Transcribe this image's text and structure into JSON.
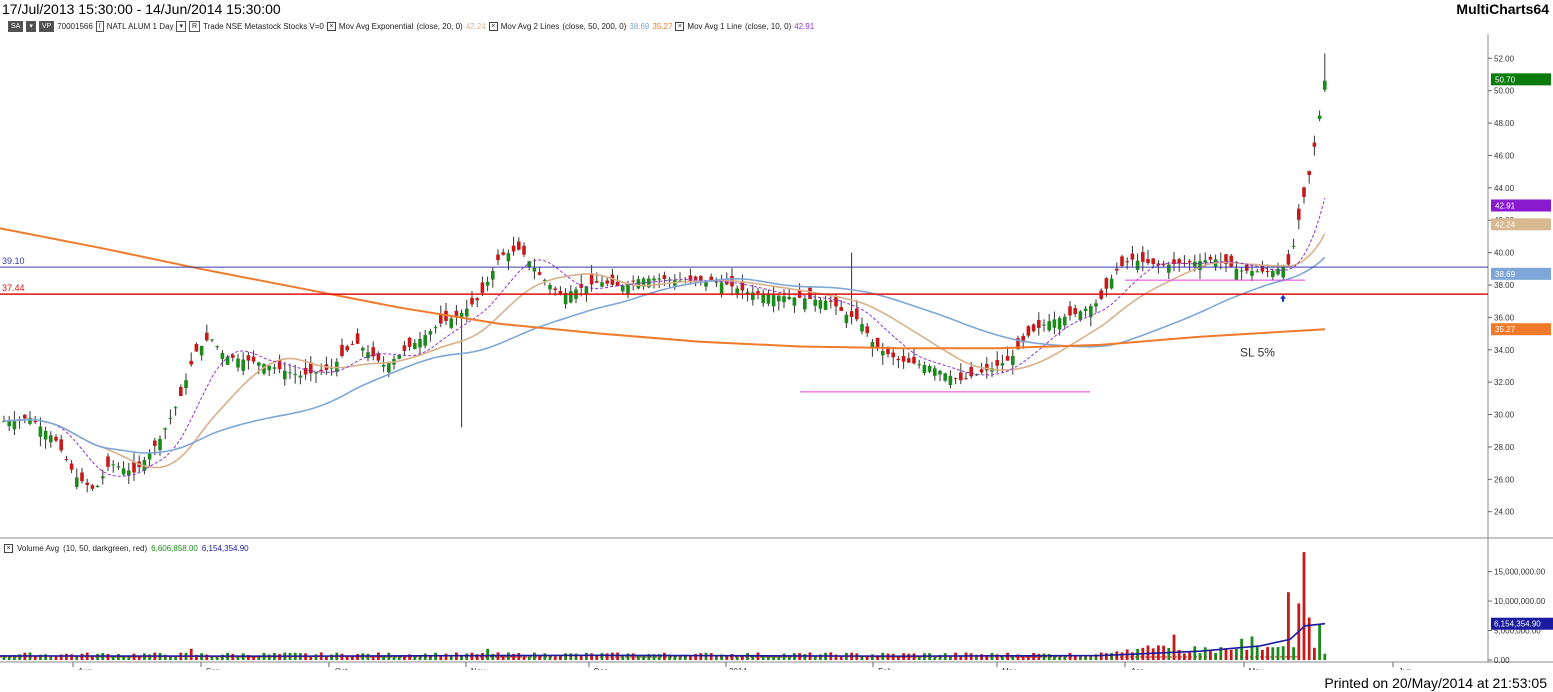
{
  "window": {
    "date_range": "17/Jul/2013 15:30:00 - 14/Jun/2014 15:30:00",
    "brand": "MultiCharts64"
  },
  "studybar": {
    "sa_tag": "SA",
    "vp_tag": "VP",
    "symbol_id": "70001566",
    "i_tag": "I",
    "symbol": "NATL ALUM  1 Day",
    "r_tag": "R",
    "feed": "Trade  NSE  Metastock  Stocks  V=0",
    "ema_label": "Mov Avg Exponential",
    "ema_params": "(close,  20,  0)",
    "ema_value": "42.24",
    "ma2_label": "Mov Avg 2 Lines",
    "ma2_params": "(close,  50,  200,  0)",
    "ma2_value1": "38.69",
    "ma2_value2": "35.27",
    "ma1_label": "Mov Avg 1 Line",
    "ma1_params": "(close,  10,  0)",
    "ma1_value": "42.91"
  },
  "volume_bar": {
    "label": "Volume Avg",
    "params": "(10,  50,  darkgreen,  red)",
    "value1": "6,606,858.00",
    "value2": "6,154,354.90"
  },
  "footer": {
    "printed": "Printed on 20/May/2014 at 21:53:05"
  },
  "chart_data": {
    "type": "candlestick",
    "y_axis": {
      "ticks": [
        "24.00",
        "26.00",
        "28.00",
        "30.00",
        "32.00",
        "34.00",
        "36.00",
        "38.00",
        "40.00",
        "42.00",
        "44.00",
        "46.00",
        "48.00",
        "50.00",
        "52.00"
      ],
      "range": [
        22.5,
        53.5
      ]
    },
    "x_axis": {
      "labels": [
        "Aug",
        "Sep",
        "Oct",
        "Nov",
        "Dec",
        "2014",
        "Feb",
        "Mar",
        "Apr",
        "May",
        "Jun"
      ]
    },
    "horizontal_lines": [
      {
        "label": "39.10",
        "value": 39.1,
        "color": "#3a3aaa"
      },
      {
        "label": "37.44",
        "value": 37.44,
        "color": "#e01010"
      }
    ],
    "annotation": "SL 5%",
    "price_labels": [
      {
        "text": "50.70",
        "value": 50.7,
        "color": "#0a7a0a"
      },
      {
        "text": "42.91",
        "value": 42.91,
        "color": "#8a1ad0"
      },
      {
        "text": "42.24",
        "value": 42.24,
        "color": "#d8b890"
      },
      {
        "text": "38.69",
        "value": 38.69,
        "color": "#7ea6d8"
      },
      {
        "text": "35.27",
        "value": 35.27,
        "color": "#f07a2a"
      }
    ],
    "volume_axis": {
      "ticks": [
        "0.00",
        "5,000,000.00",
        "10,000,000.00",
        "15,000,000.00"
      ],
      "range": [
        0,
        19000000
      ]
    },
    "volume_label": {
      "text": "6,154,354.90",
      "value": 6154354.9
    },
    "colors": {
      "up": "#1a8a1a",
      "down": "#c81818",
      "ema20": "#d8b08a",
      "ma50": "#7ea6d8",
      "ma200": "#f07a2a",
      "ma10": "#9030d0"
    }
  }
}
